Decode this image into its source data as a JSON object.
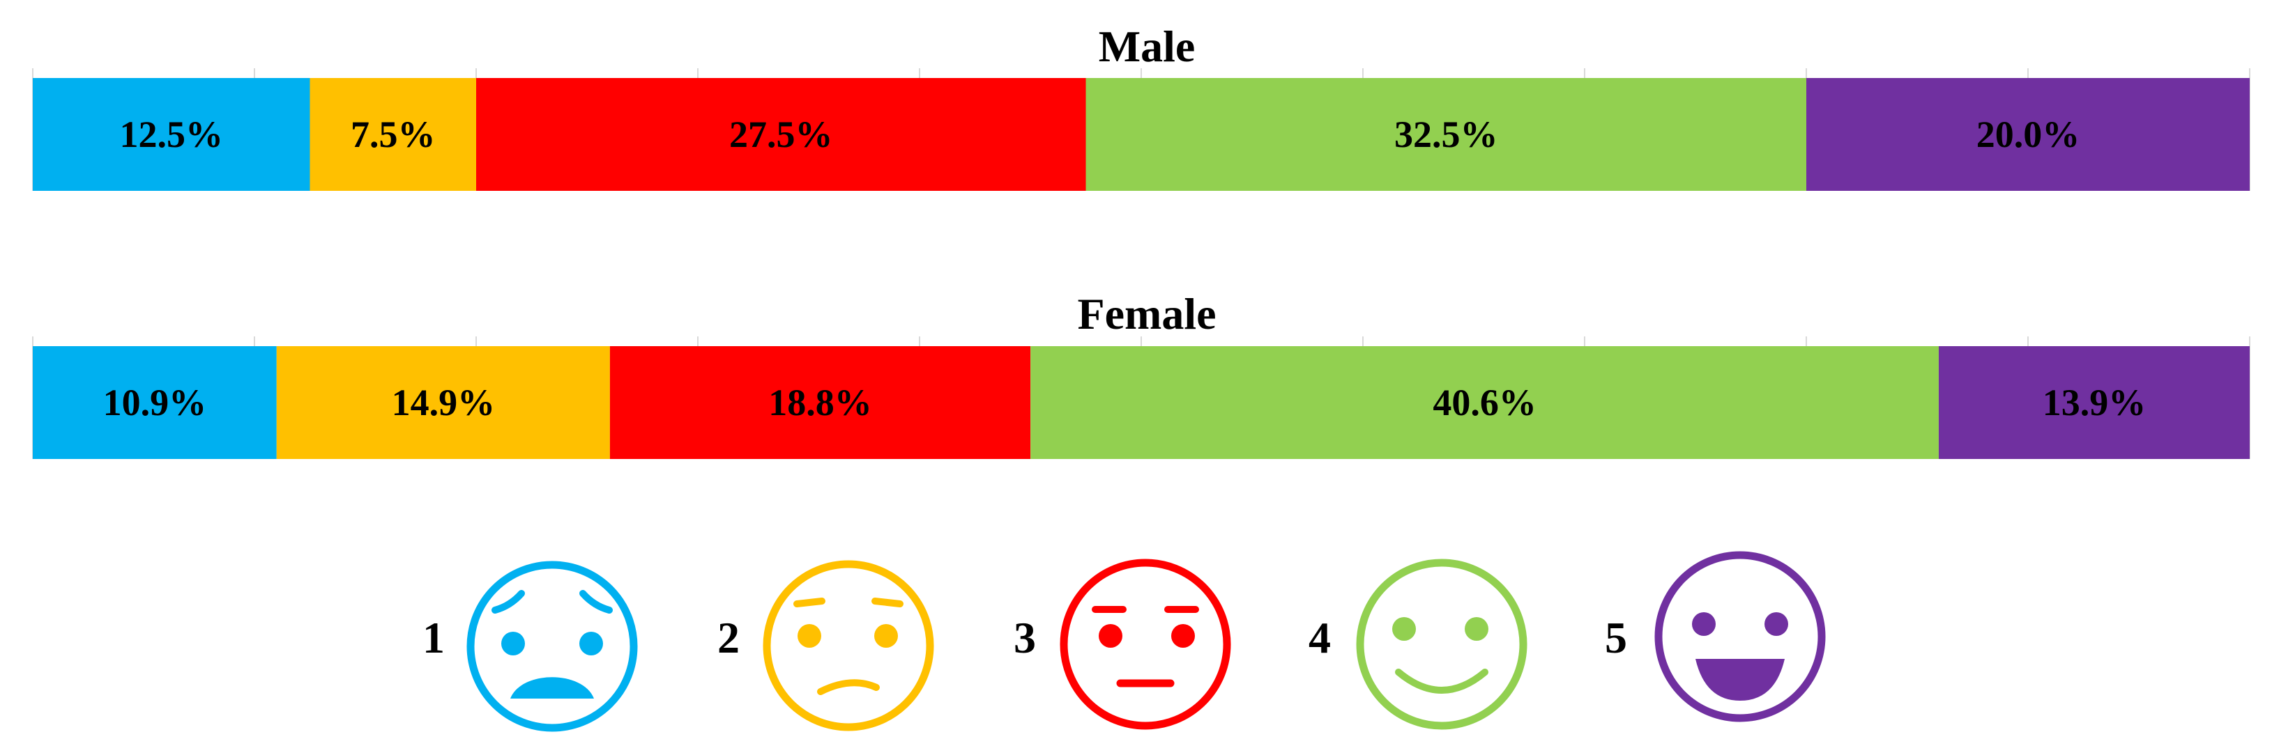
{
  "chart_data": {
    "type": "bar",
    "orientation": "horizontal",
    "stacked": true,
    "normalized": "100%",
    "xlim": [
      0,
      100
    ],
    "grid": true,
    "legend_placement": "bottom",
    "charts": [
      {
        "title": "Male",
        "segments": [
          {
            "category": "1",
            "value": 12.5,
            "label": "12.5%"
          },
          {
            "category": "2",
            "value": 7.5,
            "label": "7.5%"
          },
          {
            "category": "3",
            "value": 27.5,
            "label": "27.5%"
          },
          {
            "category": "4",
            "value": 32.5,
            "label": "32.5%"
          },
          {
            "category": "5",
            "value": 20.0,
            "label": "20.0%"
          }
        ]
      },
      {
        "title": "Female",
        "segments": [
          {
            "category": "1",
            "value": 10.9,
            "label": "10.9%"
          },
          {
            "category": "2",
            "value": 14.9,
            "label": "14.9%"
          },
          {
            "category": "3",
            "value": 18.8,
            "label": "18.8%"
          },
          {
            "category": "4",
            "value": 40.6,
            "label": "40.6%"
          },
          {
            "category": "5",
            "value": 13.9,
            "label": "13.9%"
          }
        ]
      }
    ],
    "legend": [
      {
        "number": "1",
        "icon": "worried-face-icon",
        "color": "#00b0f0"
      },
      {
        "number": "2",
        "icon": "confused-face-icon",
        "color": "#ffc000"
      },
      {
        "number": "3",
        "icon": "neutral-face-icon",
        "color": "#ff0000"
      },
      {
        "number": "4",
        "icon": "smiling-face-icon",
        "color": "#92d050"
      },
      {
        "number": "5",
        "icon": "grinning-face-icon",
        "color": "#7030a0"
      }
    ]
  }
}
